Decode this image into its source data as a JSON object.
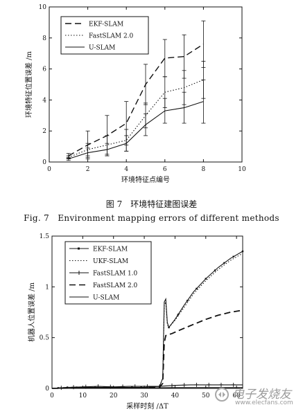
{
  "figure1": {
    "caption_zh": "图 7　环境特征建图误差",
    "caption_en": "Fig. 7　Environment mapping errors of different methods"
  },
  "chart_data": [
    {
      "type": "line",
      "title": "",
      "xlabel": "环境特征点编号",
      "ylabel": "环境特征位置误差 /m",
      "xlim": [
        0,
        10
      ],
      "ylim": [
        0,
        10
      ],
      "xticks": [
        "0",
        "2",
        "4",
        "6",
        "8",
        "10"
      ],
      "yticks": [
        "0",
        "2",
        "4",
        "6",
        "8",
        "10"
      ],
      "grid": false,
      "legend_position": "top-left",
      "x": [
        1,
        2,
        3,
        4,
        5,
        6,
        7,
        8
      ],
      "series": [
        {
          "name": "EKF-SLAM",
          "style": "dashed",
          "values": [
            0.4,
            1.1,
            1.7,
            2.5,
            5.0,
            6.7,
            6.8,
            7.6
          ],
          "error": [
            0.15,
            0.9,
            1.3,
            1.4,
            1.3,
            1.2,
            1.4,
            1.5
          ]
        },
        {
          "name": "FastSLAM 2.0",
          "style": "dotted",
          "values": [
            0.3,
            0.8,
            1.1,
            1.4,
            3.0,
            4.5,
            4.8,
            5.3
          ],
          "error": [
            0.1,
            0.4,
            0.6,
            0.7,
            0.8,
            1.0,
            1.1,
            1.2
          ]
        },
        {
          "name": "U-SLAM",
          "style": "solid",
          "values": [
            0.2,
            0.6,
            0.8,
            1.2,
            2.4,
            3.3,
            3.5,
            3.9
          ],
          "error": [
            0.1,
            0.3,
            0.4,
            0.5,
            0.7,
            0.8,
            1.0,
            1.4
          ]
        }
      ]
    },
    {
      "type": "line",
      "title": "",
      "xlabel": "采样时刻 /ΔT",
      "ylabel": "机器人位置误差 /m",
      "xlim": [
        0,
        62
      ],
      "ylim": [
        0,
        1.5
      ],
      "xticks": [
        "0",
        "10",
        "20",
        "30",
        "40",
        "50",
        "60"
      ],
      "yticks": [
        "0",
        "0.5",
        "1",
        "1.5"
      ],
      "grid": false,
      "legend_position": "top-left",
      "series": [
        {
          "name": "EKF-SLAM",
          "style": "solid-square-marker",
          "points": [
            [
              0,
              0
            ],
            [
              5,
              0.01
            ],
            [
              10,
              0.01
            ],
            [
              15,
              0.01
            ],
            [
              20,
              0.01
            ],
            [
              25,
              0.01
            ],
            [
              30,
              0.01
            ],
            [
              35,
              0.02
            ],
            [
              36,
              0.1
            ],
            [
              36.5,
              0.85
            ],
            [
              37,
              0.88
            ],
            [
              37.5,
              0.65
            ],
            [
              38,
              0.6
            ],
            [
              40,
              0.68
            ],
            [
              43,
              0.82
            ],
            [
              46,
              0.95
            ],
            [
              50,
              1.08
            ],
            [
              54,
              1.19
            ],
            [
              58,
              1.28
            ],
            [
              62,
              1.35
            ]
          ]
        },
        {
          "name": "UKF-SLAM",
          "style": "dotted",
          "points": [
            [
              0,
              0
            ],
            [
              5,
              0.01
            ],
            [
              10,
              0.01
            ],
            [
              15,
              0.01
            ],
            [
              20,
              0.01
            ],
            [
              25,
              0.01
            ],
            [
              30,
              0.01
            ],
            [
              35,
              0.02
            ],
            [
              36,
              0.1
            ],
            [
              36.5,
              0.82
            ],
            [
              37,
              0.85
            ],
            [
              37.5,
              0.63
            ],
            [
              38,
              0.6
            ],
            [
              40,
              0.67
            ],
            [
              43,
              0.8
            ],
            [
              46,
              0.93
            ],
            [
              50,
              1.06
            ],
            [
              54,
              1.17
            ],
            [
              58,
              1.26
            ],
            [
              62,
              1.33
            ]
          ]
        },
        {
          "name": "FastSLAM 1.0",
          "style": "solid-plus-marker",
          "points": [
            [
              0,
              0
            ],
            [
              5,
              0.01
            ],
            [
              10,
              0.015
            ],
            [
              15,
              0.02
            ],
            [
              20,
              0.015
            ],
            [
              25,
              0.02
            ],
            [
              30,
              0.02
            ],
            [
              35,
              0.02
            ],
            [
              40,
              0.03
            ],
            [
              45,
              0.035
            ],
            [
              50,
              0.035
            ],
            [
              55,
              0.035
            ],
            [
              60,
              0.035
            ],
            [
              62,
              0.035
            ]
          ]
        },
        {
          "name": "FastSLAM 2.0",
          "style": "dashed",
          "points": [
            [
              0,
              0
            ],
            [
              10,
              0.005
            ],
            [
              20,
              0.005
            ],
            [
              30,
              0.005
            ],
            [
              35,
              0.01
            ],
            [
              36,
              0.05
            ],
            [
              36.5,
              0.45
            ],
            [
              37,
              0.52
            ],
            [
              39,
              0.54
            ],
            [
              42,
              0.58
            ],
            [
              46,
              0.63
            ],
            [
              50,
              0.68
            ],
            [
              54,
              0.72
            ],
            [
              58,
              0.75
            ],
            [
              62,
              0.77
            ]
          ]
        },
        {
          "name": "U-SLAM",
          "style": "solid",
          "points": [
            [
              0,
              0
            ],
            [
              10,
              0.005
            ],
            [
              20,
              0.005
            ],
            [
              30,
              0.005
            ],
            [
              40,
              0.008
            ],
            [
              50,
              0.008
            ],
            [
              62,
              0.008
            ]
          ]
        }
      ]
    }
  ],
  "watermark": {
    "main": "电子发烧友",
    "sub": "www.elecfans.com"
  }
}
